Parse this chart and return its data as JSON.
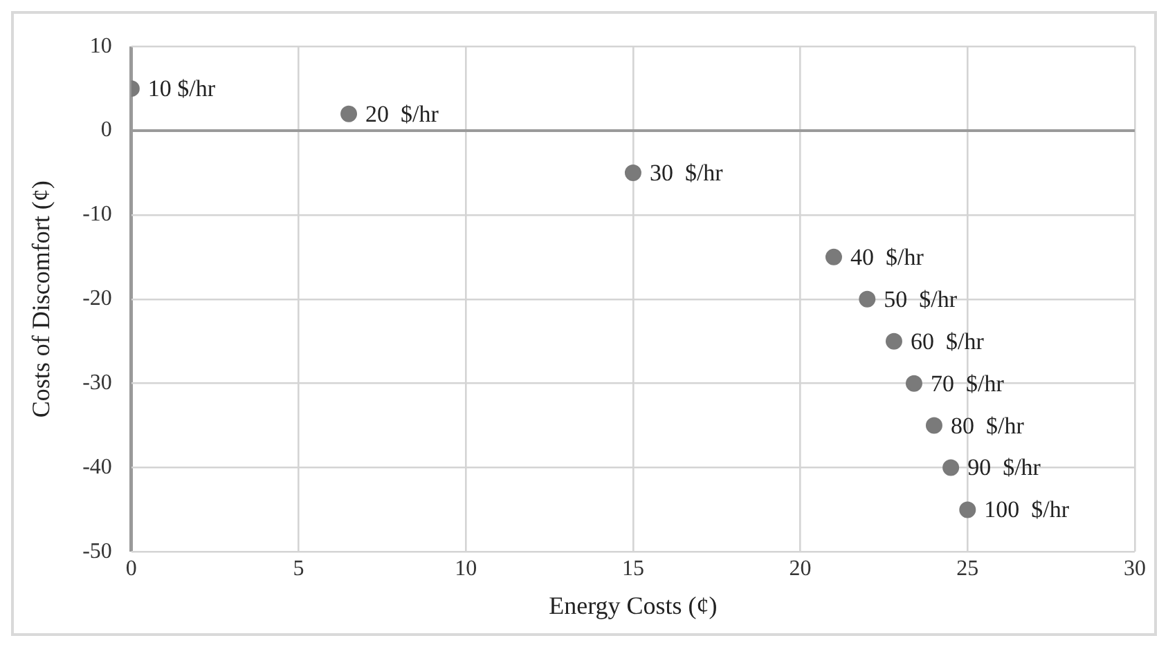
{
  "chart_data": {
    "type": "scatter",
    "xlabel": "Energy Costs (¢)",
    "ylabel": "Costs of Discomfort (¢)",
    "x": [
      0,
      6.5,
      15,
      21,
      22,
      22.8,
      23.4,
      24,
      24.5,
      25
    ],
    "series": [
      {
        "color": "#7a7a7a",
        "values": [
          5,
          2,
          -5,
          -15,
          -20,
          -25,
          -30,
          -35,
          -40,
          -45
        ]
      }
    ],
    "annotations": [
      {
        "text": "10 $/hr",
        "x": 0,
        "y": 5
      },
      {
        "text": "20  $/hr",
        "x": 6.5,
        "y": 2
      },
      {
        "text": "30  $/hr",
        "x": 15,
        "y": -5
      },
      {
        "text": "40  $/hr",
        "x": 21,
        "y": -15
      },
      {
        "text": "50  $/hr",
        "x": 22,
        "y": -20
      },
      {
        "text": "60  $/hr",
        "x": 22.8,
        "y": -25
      },
      {
        "text": "70  $/hr",
        "x": 23.4,
        "y": -30
      },
      {
        "text": "80  $/hr",
        "x": 24,
        "y": -35
      },
      {
        "text": "90  $/hr",
        "x": 24.5,
        "y": -40
      },
      {
        "text": "100  $/hr",
        "x": 25,
        "y": -45
      }
    ],
    "xlim": [
      0,
      30
    ],
    "xticks": [
      0,
      5,
      10,
      15,
      20,
      25,
      30
    ],
    "ylim": [
      -50,
      10
    ],
    "yticks": [
      -50,
      -40,
      -30,
      -20,
      -10,
      0,
      10
    ],
    "grid": true,
    "legend": false,
    "marker": "circle"
  }
}
